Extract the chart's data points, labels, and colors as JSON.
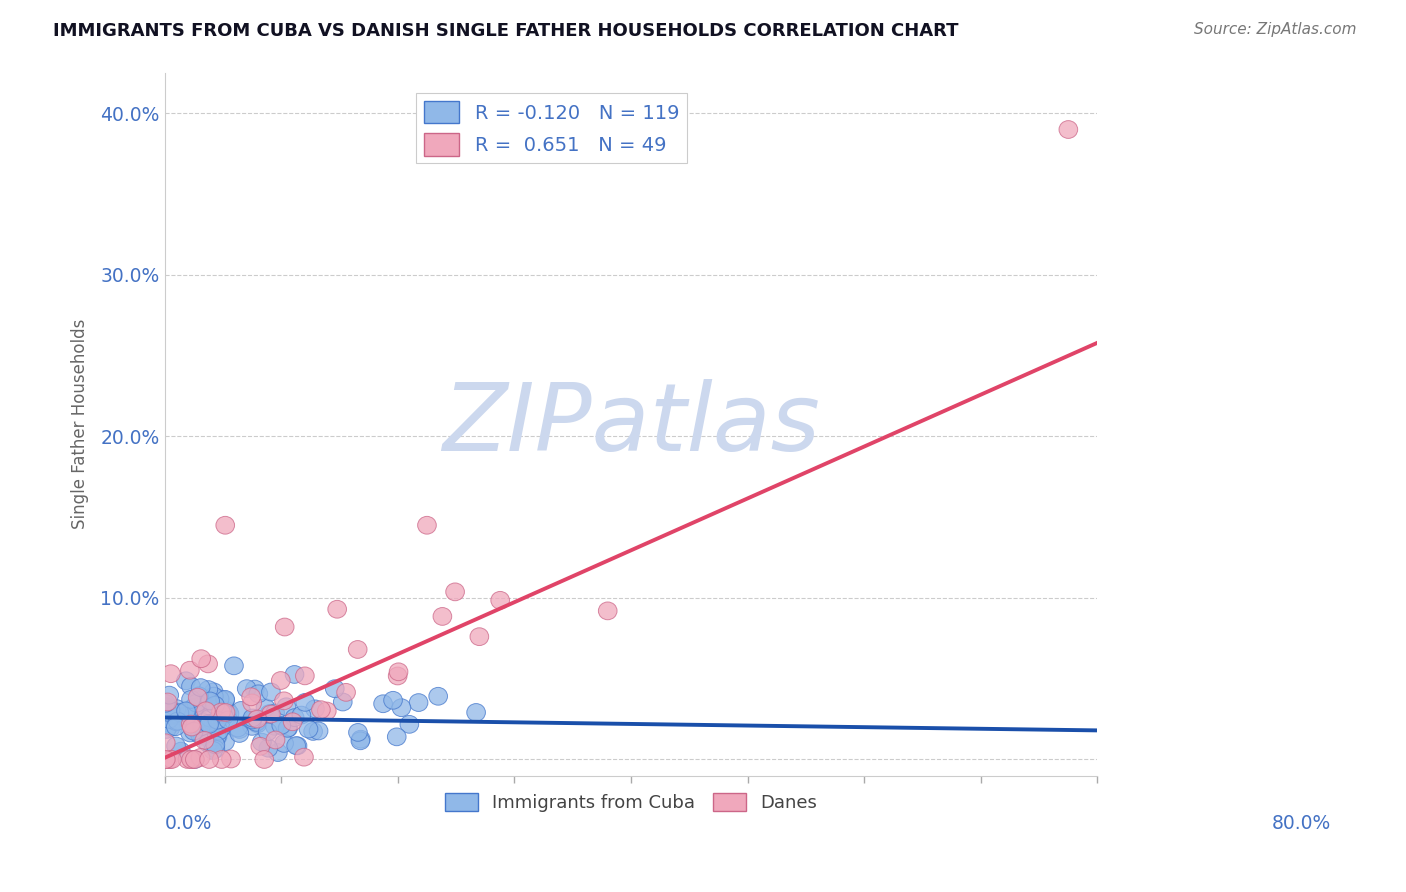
{
  "title": "IMMIGRANTS FROM CUBA VS DANISH SINGLE FATHER HOUSEHOLDS CORRELATION CHART",
  "source": "Source: ZipAtlas.com",
  "ylabel": "Single Father Households",
  "yticks": [
    0.0,
    0.1,
    0.2,
    0.3,
    0.4
  ],
  "ytick_labels": [
    "",
    "10.0%",
    "20.0%",
    "30.0%",
    "40.0%"
  ],
  "xlim": [
    0.0,
    0.8
  ],
  "ylim": [
    -0.01,
    0.425
  ],
  "series_blue": {
    "color": "#90b8e8",
    "edge_color": "#4477cc",
    "trend_color": "#1a4faa",
    "trend_x": [
      0.0,
      0.8
    ],
    "trend_y": [
      0.026,
      0.018
    ]
  },
  "series_pink": {
    "color": "#f0a8bc",
    "edge_color": "#cc6688",
    "trend_color": "#e04468",
    "trend_x": [
      0.0,
      0.8
    ],
    "trend_y": [
      0.001,
      0.258
    ]
  },
  "watermark": "ZIPatlas",
  "watermark_color": "#ccd8ee",
  "title_color": "#111122",
  "axis_label_color": "#4472c4",
  "ylabel_color": "#666666",
  "grid_color": "#cccccc",
  "background_color": "#ffffff",
  "legend_r_color": "#4472c4",
  "legend_n_color": "#4472c4",
  "legend_label_color": "#222222"
}
